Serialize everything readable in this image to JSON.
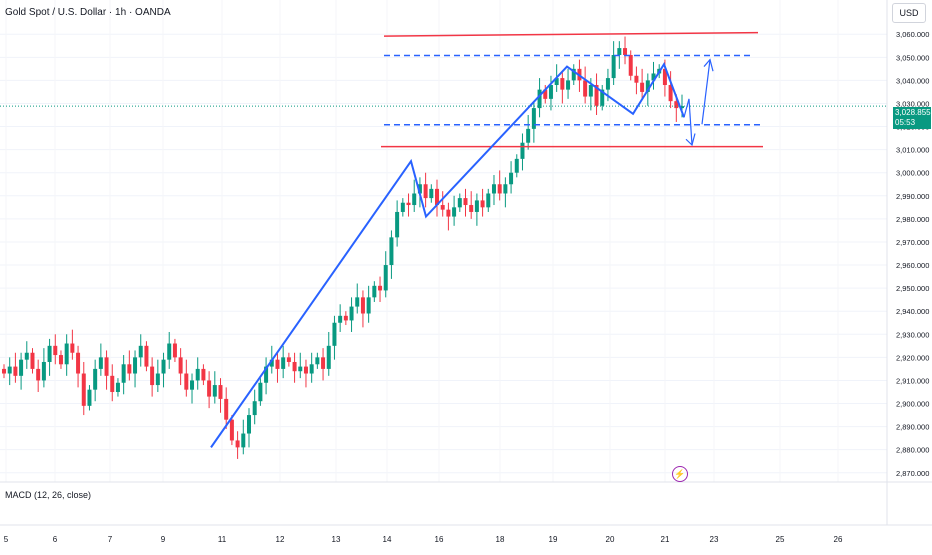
{
  "header": {
    "title": "Gold Spot / U.S. Dollar · 1h · OANDA",
    "currency_button": "USD"
  },
  "indicator": {
    "label": "MACD (12, 26, close)"
  },
  "price_badge": {
    "price": "3,028.855",
    "countdown": "05:53"
  },
  "colors": {
    "up": "#089981",
    "down": "#f23645",
    "pattern": "#2962ff",
    "resistance": "#f23645",
    "price_line": "#089981"
  },
  "chart_data": {
    "type": "candlestick",
    "symbol": "Gold Spot / U.S. Dollar",
    "interval": "1h",
    "source": "OANDA",
    "y_ticks": [
      3060,
      3050,
      3040,
      3030,
      3020,
      3010,
      3000,
      2990,
      2980,
      2970,
      2960,
      2950,
      2940,
      2930,
      2920,
      2910,
      2900,
      2890,
      2880,
      2870
    ],
    "y_tick_labels": [
      "3,060.000",
      "3,050.000",
      "3,040.000",
      "3,030.000",
      "3,020.000",
      "3,010.000",
      "3,000.000",
      "2,990.000",
      "2,980.000",
      "2,970.000",
      "2,960.000",
      "2,950.000",
      "2,940.000",
      "2,930.000",
      "2,920.000",
      "2,910.000",
      "2,900.000",
      "2,890.000",
      "2,880.000",
      "2,870.000"
    ],
    "ylim": [
      2866,
      3064
    ],
    "x_ticks": [
      "5",
      "6",
      "7",
      "9",
      "11",
      "12",
      "13",
      "14",
      "16",
      "18",
      "19",
      "20",
      "21",
      "23",
      "25",
      "26"
    ],
    "current_price": 3028.855,
    "trend_lines": {
      "upper_resistance": [
        [
          3059.2,
          3060.7
        ]
      ],
      "lower_support": [
        3011.3,
        3011.3
      ],
      "dashed_upper": 3050.8,
      "dashed_lower": 3020.8
    },
    "zigzag": [
      2881,
      3005,
      2981,
      3046,
      3025.5,
      3047,
      3024
    ],
    "closes": [
      2913,
      2916,
      2912,
      2919,
      2922,
      2915,
      2910,
      2918,
      2925,
      2921,
      2917,
      2926,
      2922,
      2913,
      2899,
      2906,
      2915,
      2920,
      2912,
      2905,
      2909,
      2917,
      2913,
      2920,
      2925,
      2916,
      2908,
      2913,
      2919,
      2926,
      2920,
      2913,
      2906,
      2910,
      2915,
      2910,
      2903,
      2908,
      2902,
      2893,
      2884,
      2881,
      2887,
      2895,
      2901,
      2909,
      2916,
      2919,
      2915,
      2920,
      2918,
      2914,
      2916,
      2913,
      2917,
      2920,
      2915,
      2925,
      2935,
      2938,
      2936,
      2942,
      2946,
      2939,
      2946,
      2951,
      2949,
      2960,
      2972,
      2983,
      2987,
      2986,
      2991,
      2995,
      2989,
      2993,
      2986,
      2984,
      2981,
      2985,
      2989,
      2986,
      2983,
      2988,
      2985,
      2991,
      2995,
      2991,
      2995,
      3000,
      3006,
      3013,
      3019,
      3028,
      3036,
      3032,
      3038,
      3041,
      3036,
      3040,
      3045,
      3040,
      3033,
      3038,
      3029,
      3036,
      3041,
      3051,
      3054,
      3051,
      3042,
      3039,
      3035,
      3040,
      3043,
      3045,
      3038,
      3031,
      3028,
      3028.855
    ]
  }
}
